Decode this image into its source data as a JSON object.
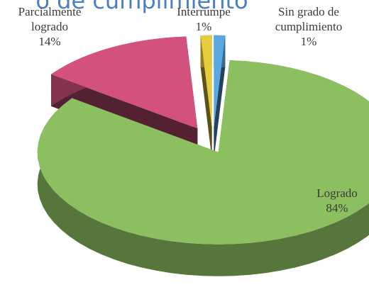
{
  "chart_data": {
    "type": "pie3d",
    "title": "o de cumplimiento",
    "categories": [
      "Logrado",
      "Parcialmente logrado",
      "Interrumpe",
      "Sin grado de cumplimiento"
    ],
    "values": [
      84,
      14,
      1,
      1
    ],
    "value_labels": [
      "84%",
      "14%",
      "1%",
      "1%"
    ],
    "colors": [
      "#8cbf5f",
      "#d2527c",
      "#e6cc3c",
      "#5ba7e2"
    ]
  }
}
